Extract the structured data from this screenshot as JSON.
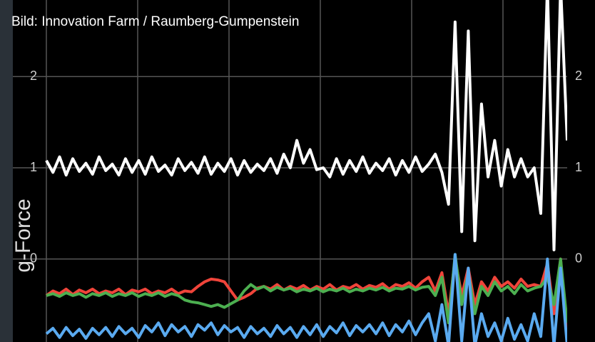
{
  "chart_data": {
    "type": "line",
    "caption": "Bild: Innovation Farm / Raumberg-Gumpenstein",
    "y_label": "g-Force",
    "ylim": [
      -0.91,
      2.84
    ],
    "yticks": [
      0,
      1,
      2
    ],
    "grid": true,
    "series": [
      {
        "color": "#ffffff",
        "values": [
          1.08,
          0.95,
          1.12,
          0.92,
          1.1,
          0.96,
          1.05,
          0.93,
          1.12,
          0.97,
          1.04,
          0.92,
          1.1,
          0.95,
          1.08,
          0.93,
          1.12,
          0.96,
          1.03,
          0.92,
          1.1,
          0.97,
          1.06,
          0.94,
          1.12,
          0.93,
          1.05,
          0.96,
          1.1,
          0.92,
          1.08,
          0.95,
          1.04,
          0.97,
          1.1,
          0.94,
          1.15,
          1.0,
          1.3,
          1.05,
          1.2,
          0.98,
          1.0,
          0.9,
          1.1,
          0.93,
          1.08,
          0.96,
          1.12,
          0.94,
          1.05,
          0.97,
          1.1,
          0.92,
          1.08,
          0.95,
          1.12,
          0.96,
          1.04,
          1.15,
          0.95,
          0.6,
          2.6,
          0.3,
          2.5,
          0.2,
          1.7,
          0.9,
          1.3,
          0.8,
          1.2,
          0.9,
          1.1,
          0.9,
          1.0,
          0.5,
          3.0,
          0.1,
          3.0,
          1.3
        ]
      },
      {
        "color": "#f0443a",
        "values": [
          -0.4,
          -0.35,
          -0.38,
          -0.33,
          -0.39,
          -0.34,
          -0.37,
          -0.33,
          -0.38,
          -0.35,
          -0.37,
          -0.33,
          -0.39,
          -0.34,
          -0.36,
          -0.33,
          -0.38,
          -0.35,
          -0.37,
          -0.33,
          -0.38,
          -0.35,
          -0.36,
          -0.3,
          -0.25,
          -0.22,
          -0.23,
          -0.25,
          -0.35,
          -0.45,
          -0.42,
          -0.38,
          -0.32,
          -0.3,
          -0.33,
          -0.28,
          -0.34,
          -0.3,
          -0.33,
          -0.29,
          -0.34,
          -0.3,
          -0.33,
          -0.28,
          -0.34,
          -0.3,
          -0.32,
          -0.28,
          -0.33,
          -0.29,
          -0.31,
          -0.27,
          -0.33,
          -0.28,
          -0.3,
          -0.26,
          -0.32,
          -0.25,
          -0.2,
          -0.35,
          -0.15,
          -0.6,
          0.0,
          -0.4,
          -0.1,
          -0.5,
          -0.25,
          -0.35,
          -0.2,
          -0.3,
          -0.25,
          -0.32,
          -0.22,
          -0.3,
          -0.28,
          -0.3,
          -0.05,
          -0.6,
          0.0,
          -0.9
        ]
      },
      {
        "color": "#4caf50",
        "values": [
          -0.4,
          -0.38,
          -0.41,
          -0.37,
          -0.4,
          -0.38,
          -0.42,
          -0.38,
          -0.4,
          -0.37,
          -0.41,
          -0.38,
          -0.4,
          -0.37,
          -0.41,
          -0.38,
          -0.4,
          -0.37,
          -0.41,
          -0.38,
          -0.4,
          -0.45,
          -0.47,
          -0.48,
          -0.5,
          -0.52,
          -0.5,
          -0.53,
          -0.49,
          -0.45,
          -0.35,
          -0.28,
          -0.33,
          -0.3,
          -0.35,
          -0.31,
          -0.34,
          -0.32,
          -0.36,
          -0.33,
          -0.35,
          -0.32,
          -0.36,
          -0.33,
          -0.35,
          -0.32,
          -0.36,
          -0.33,
          -0.35,
          -0.32,
          -0.34,
          -0.31,
          -0.35,
          -0.32,
          -0.33,
          -0.3,
          -0.34,
          -0.31,
          -0.3,
          -0.4,
          -0.2,
          -0.7,
          0.05,
          -0.5,
          -0.15,
          -0.6,
          -0.3,
          -0.4,
          -0.25,
          -0.35,
          -0.3,
          -0.38,
          -0.28,
          -0.35,
          -0.32,
          -0.3,
          -0.2,
          -0.5,
          0.0,
          -0.7
        ]
      },
      {
        "color": "#5aaaf0",
        "values": [
          -0.82,
          -0.76,
          -0.86,
          -0.75,
          -0.84,
          -0.77,
          -0.87,
          -0.76,
          -0.83,
          -0.75,
          -0.85,
          -0.74,
          -0.82,
          -0.76,
          -0.86,
          -0.73,
          -0.8,
          -0.7,
          -0.84,
          -0.72,
          -0.8,
          -0.74,
          -0.85,
          -0.72,
          -0.78,
          -0.7,
          -0.83,
          -0.73,
          -0.8,
          -0.75,
          -0.86,
          -0.74,
          -0.82,
          -0.76,
          -0.85,
          -0.73,
          -0.82,
          -0.75,
          -0.86,
          -0.74,
          -0.83,
          -0.72,
          -0.85,
          -0.74,
          -0.81,
          -0.7,
          -0.84,
          -0.73,
          -0.8,
          -0.72,
          -0.82,
          -0.7,
          -0.84,
          -0.72,
          -0.8,
          -0.68,
          -0.83,
          -0.7,
          -0.6,
          -0.9,
          -0.5,
          -0.95,
          0.05,
          -0.9,
          -0.1,
          -0.95,
          -0.6,
          -0.85,
          -0.7,
          -0.9,
          -0.65,
          -0.88,
          -0.72,
          -0.9,
          -0.6,
          -0.85,
          0.0,
          -0.95,
          -0.1,
          -0.95
        ]
      }
    ]
  }
}
